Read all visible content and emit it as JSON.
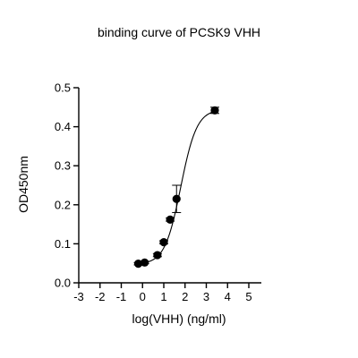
{
  "chart_data": {
    "type": "scatter",
    "title": "binding curve of PCSK9 VHH",
    "xlabel": "log(VHH) (ng/ml)",
    "ylabel": "OD450nm",
    "xlim": [
      -3,
      5
    ],
    "ylim": [
      0,
      0.5
    ],
    "xticks": [
      "-3",
      "-2",
      "-1",
      "0",
      "1",
      "2",
      "3",
      "4",
      "5"
    ],
    "yticks": [
      "0.0",
      "0.1",
      "0.2",
      "0.3",
      "0.4",
      "0.5"
    ],
    "grid": false,
    "legend": "none",
    "series": [
      {
        "points": [
          {
            "x": -0.2,
            "y": 0.049,
            "err": 0.003
          },
          {
            "x": 0.1,
            "y": 0.052,
            "err": 0.003
          },
          {
            "x": 0.7,
            "y": 0.071,
            "err": 0.004
          },
          {
            "x": 1.0,
            "y": 0.104,
            "err": 0.004
          },
          {
            "x": 1.3,
            "y": 0.162,
            "err": 0.004
          },
          {
            "x": 1.6,
            "y": 0.215,
            "err": 0.035
          },
          {
            "x": 3.4,
            "y": 0.442,
            "err": 0.008
          }
        ],
        "fit": {
          "model": "4PL",
          "bottom": 0.047,
          "top": 0.445,
          "logEC50": 1.8,
          "hill": 1.15
        }
      }
    ],
    "colors": {
      "points": "#000000",
      "curve": "#000000"
    }
  }
}
